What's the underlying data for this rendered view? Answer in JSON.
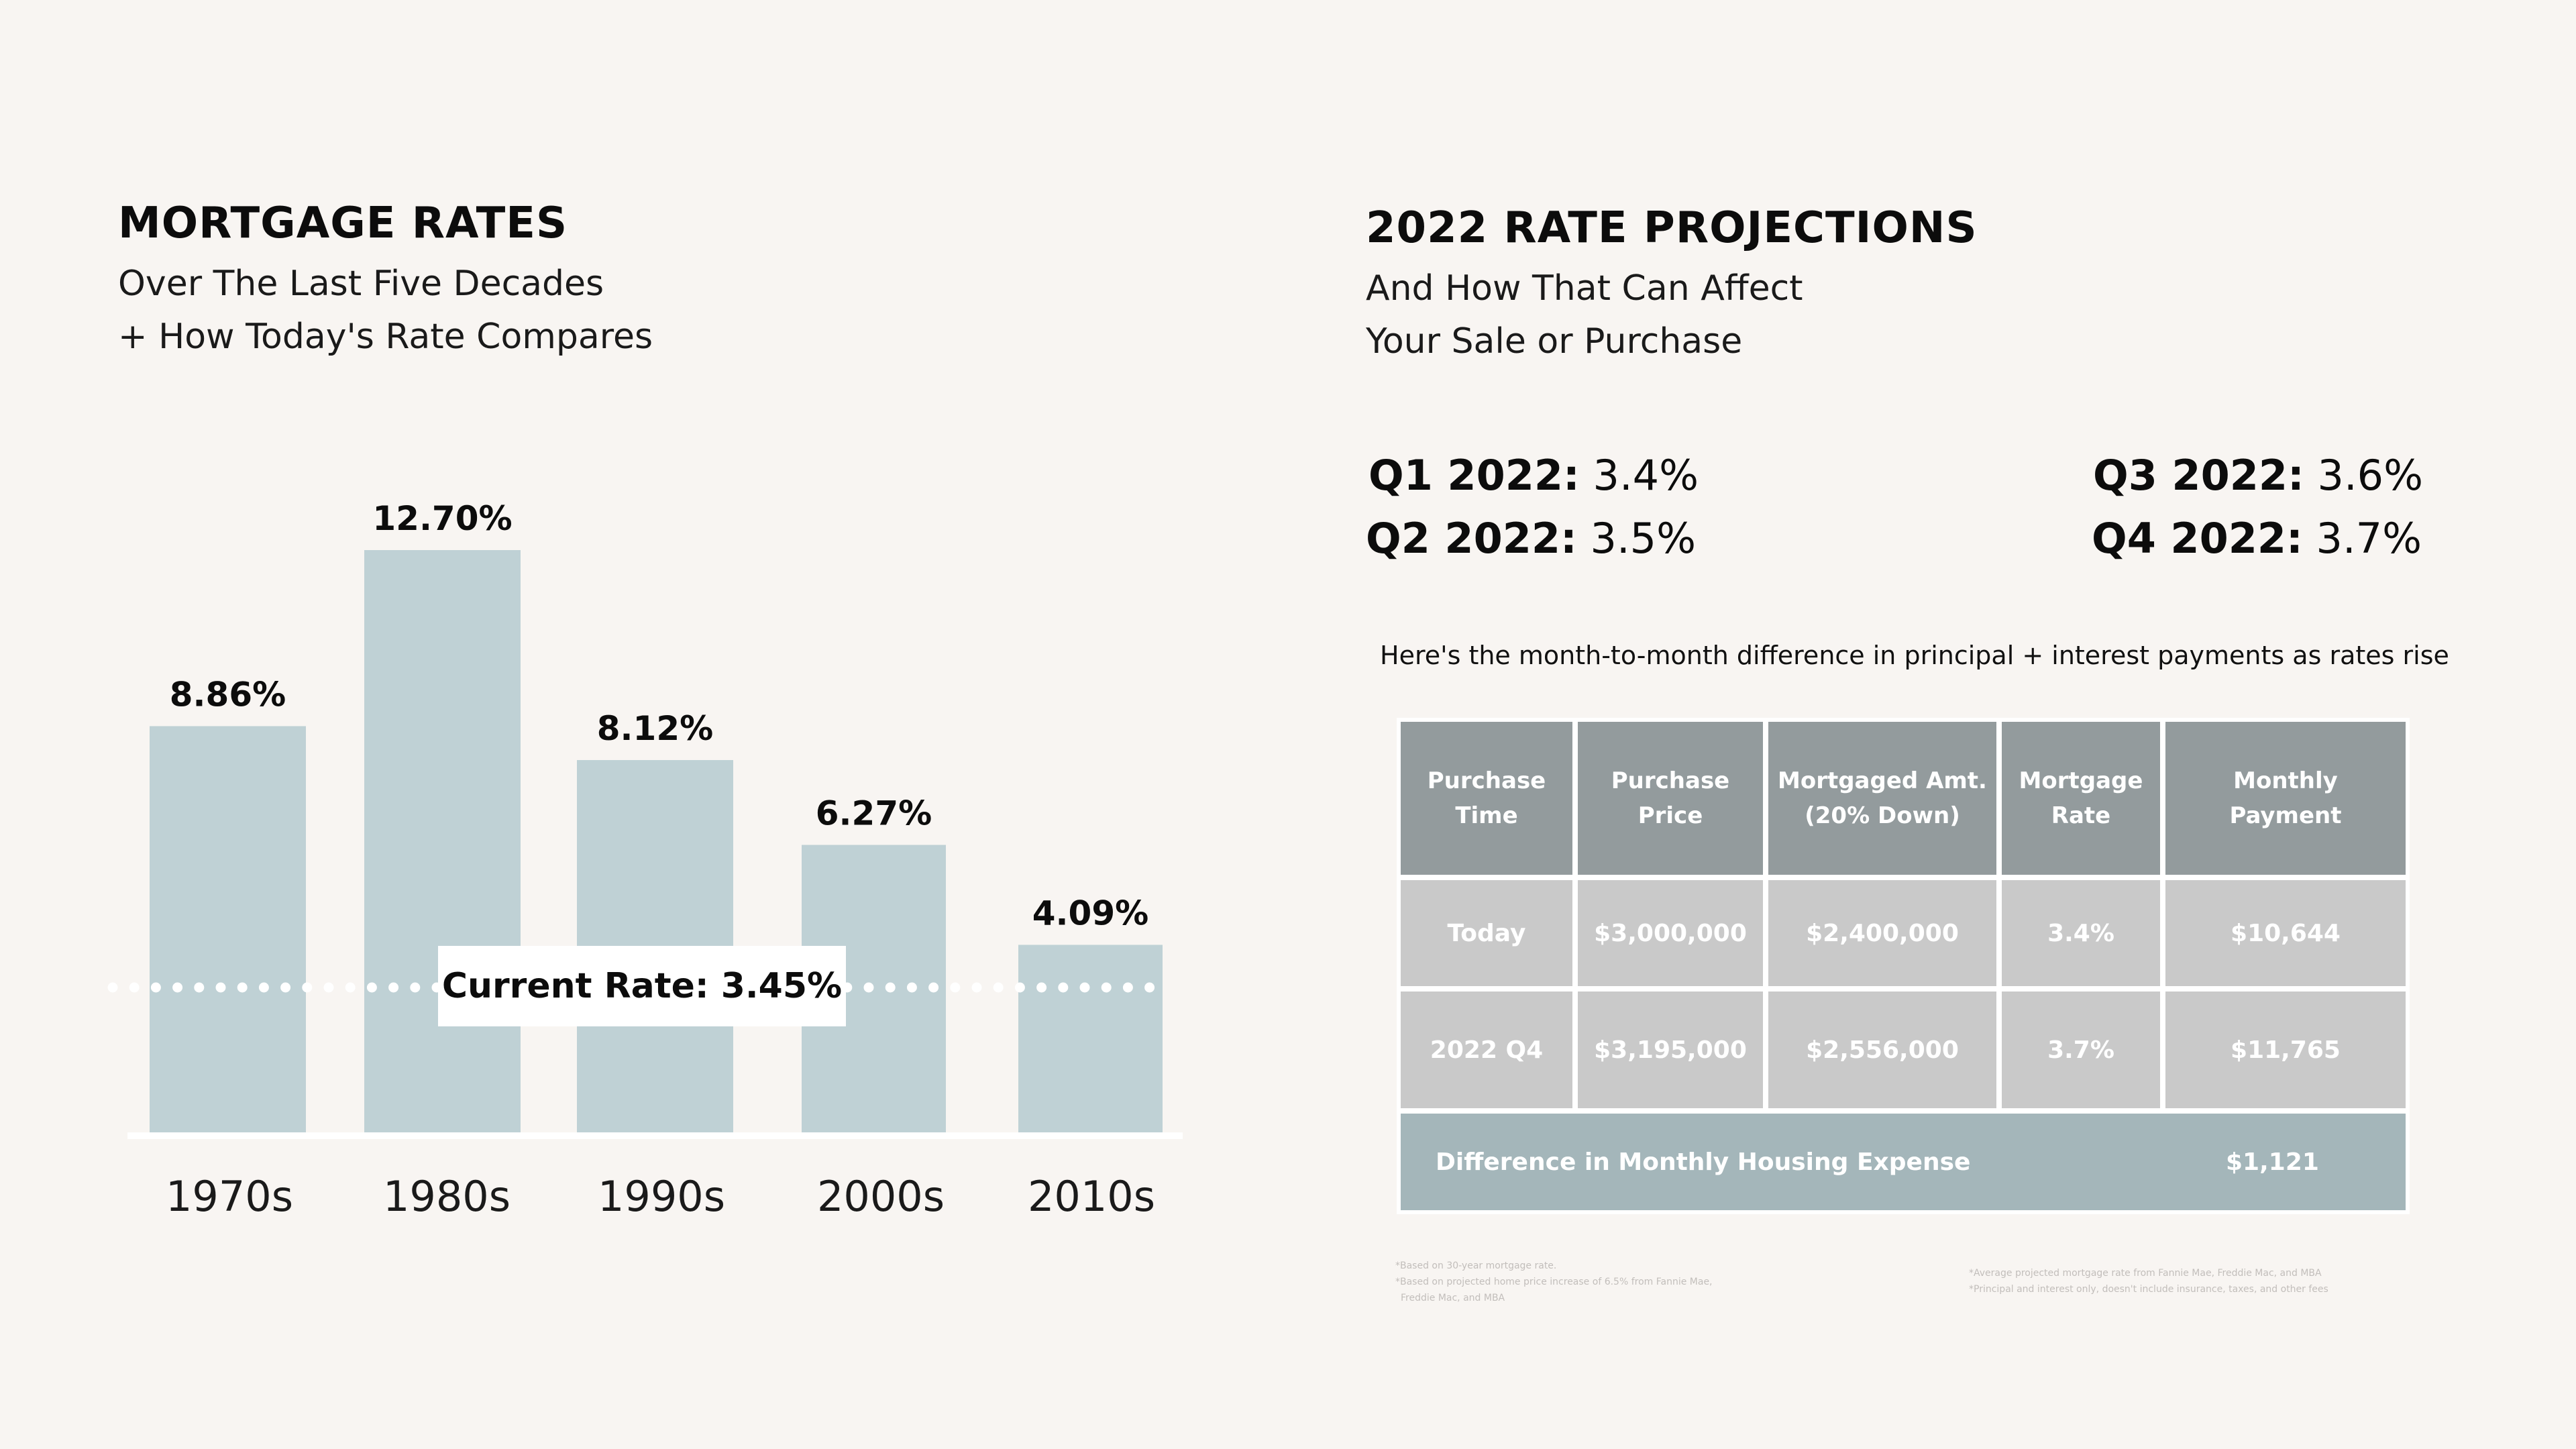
{
  "left": {
    "title": "MORTGAGE RATES",
    "subtitle_line1": "Over The Last Five Decades",
    "subtitle_line2": "+ How Today's Rate Compares",
    "current_rate_label": "Current Rate: 3.45%"
  },
  "chart_data": {
    "type": "bar",
    "title": "MORTGAGE RATES",
    "categories": [
      "1970s",
      "1980s",
      "1990s",
      "2000s",
      "2010s"
    ],
    "values": [
      8.86,
      12.7,
      8.12,
      6.27,
      4.09
    ],
    "value_labels": [
      "8.86%",
      "12.70%",
      "8.12%",
      "6.27%",
      "4.09%"
    ],
    "reference_line": {
      "value": 3.45,
      "label": "Current Rate: 3.45%"
    },
    "ylim": [
      0,
      13.5
    ],
    "grid": false,
    "colors": {
      "bar": "#bfd1d5",
      "reference_line": "#ffffff"
    }
  },
  "right": {
    "title": "2022 RATE PROJECTIONS",
    "subtitle_line1": "And How That Can Affect",
    "subtitle_line2": "Your Sale or Purchase",
    "projections": [
      {
        "label": "Q1 2022:",
        "value": "3.4%"
      },
      {
        "label": "Q2 2022:",
        "value": "3.5%"
      },
      {
        "label": "Q3 2022:",
        "value": "3.6%"
      },
      {
        "label": "Q4 2022:",
        "value": "3.7%"
      }
    ],
    "intro": "Here's the month-to-month difference in  principal + interest payments as rates rise",
    "table": {
      "headers": [
        "Purchase\nTime",
        "Purchase\nPrice",
        "Mortgaged Amt.\n(20% Down)",
        "Mortgage\nRate",
        "Monthly\nPayment"
      ],
      "rows": [
        [
          "Today",
          "$3,000,000",
          "$2,400,000",
          "3.4%",
          "$10,644"
        ],
        [
          "2022 Q4",
          "$3,195,000",
          "$2,556,000",
          "3.7%",
          "$11,765"
        ]
      ],
      "difference_label": "Difference in Monthly Housing Expense",
      "difference_value": "$1,121",
      "colors": {
        "header": "#939b9d",
        "row": "#c9c9c9",
        "difference": "#a4b6ba"
      }
    },
    "footnotes_left": [
      "*Based on 30-year mortgage rate.",
      "*Based on projected home price increase of 6.5% from Fannie Mae,",
      "Freddie Mac, and MBA"
    ],
    "footnotes_right": [
      "*Average projected mortgage rate from Fannie Mae, Freddie Mac, and MBA",
      "*Principal and interest only, doesn't include insurance, taxes, and other fees"
    ]
  }
}
